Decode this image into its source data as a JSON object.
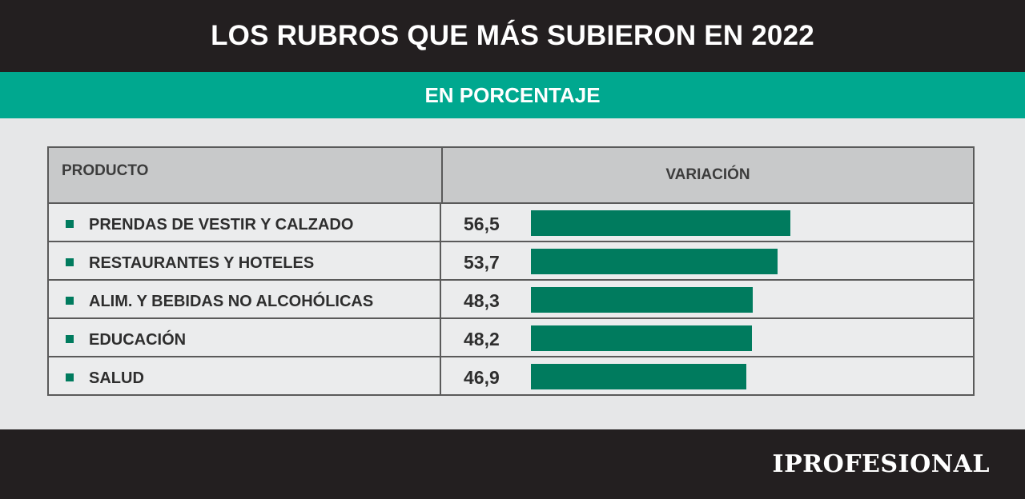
{
  "header": {
    "title": "LOS RUBROS QUE MÁS SUBIERON EN 2022"
  },
  "subheader": {
    "title": "EN PORCENTAJE"
  },
  "table": {
    "col_product": "PRODUCTO",
    "col_variation": "VARIACIÓN"
  },
  "chart_data": {
    "type": "bar",
    "orientation": "horizontal",
    "title": "LOS RUBROS QUE MÁS SUBIERON EN 2022",
    "subtitle": "EN PORCENTAJE",
    "categories": [
      "PRENDAS DE VESTIR Y CALZADO",
      "RESTAURANTES Y HOTELES",
      "ALIM. Y BEBIDAS NO ALCOHÓLICAS",
      "EDUCACIÓN",
      "SALUD"
    ],
    "values": [
      56.5,
      53.7,
      48.3,
      48.2,
      46.9
    ],
    "value_labels": [
      "56,5",
      "53,7",
      "48,3",
      "48,2",
      "46,9"
    ],
    "color": "#007b5e"
  },
  "colors": {
    "dark": "#231f20",
    "accent": "#00a88f",
    "bar": "#007b5e"
  },
  "footer": {
    "logo": "IPROFESIONAL"
  }
}
